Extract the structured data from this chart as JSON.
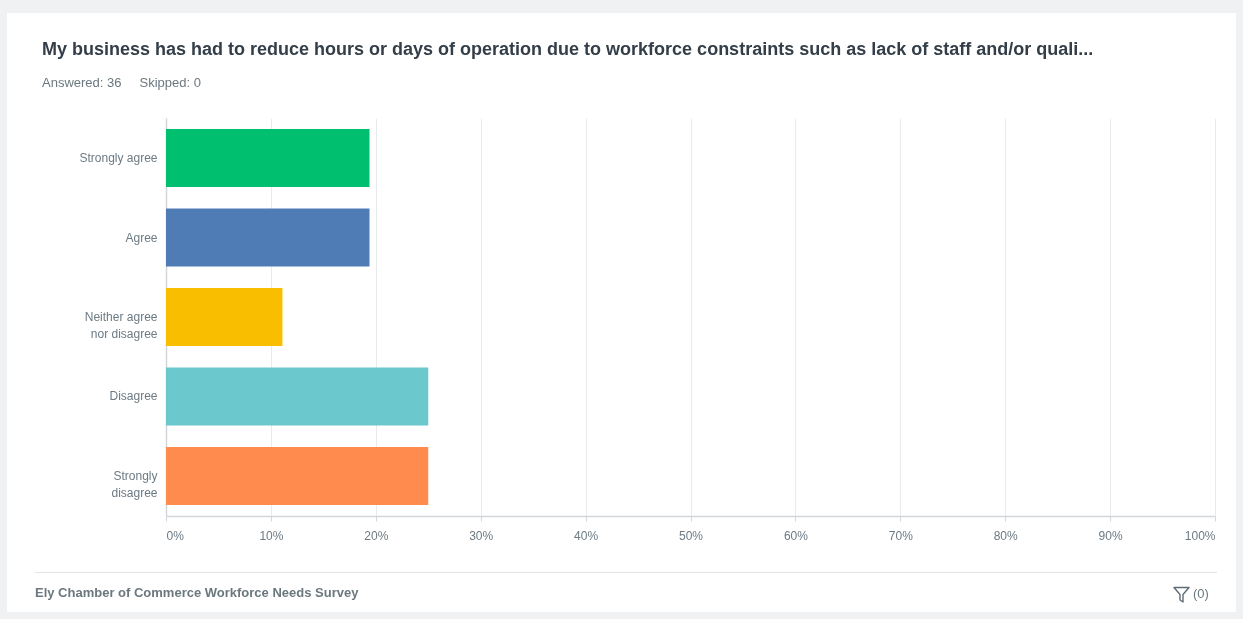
{
  "chart_data": {
    "type": "bar",
    "orientation": "horizontal",
    "title": "My business has had to reduce hours or days of operation due to workforce constraints such as lack of staff and/or quali...",
    "subtitle": "Answered: 36     Skipped: 0",
    "categories": [
      "Strongly agree",
      "Agree",
      "Neither agree nor disagree",
      "Disagree",
      "Strongly disagree"
    ],
    "values": [
      19.4,
      19.4,
      11.1,
      25,
      25
    ],
    "colors": [
      "#00bf6f",
      "#507cb6",
      "#f9be00",
      "#6bc8cd",
      "#ff8b4f"
    ],
    "xlim": [
      0,
      100
    ],
    "xticks": [
      {
        "value": 0,
        "label": "0%"
      },
      {
        "value": 10,
        "label": "10%"
      },
      {
        "value": 20,
        "label": "20%"
      },
      {
        "value": 30,
        "label": "30%"
      },
      {
        "value": 40,
        "label": "40%"
      },
      {
        "value": 50,
        "label": "50%"
      },
      {
        "value": 60,
        "label": "60%"
      },
      {
        "value": 70,
        "label": "70%"
      },
      {
        "value": 80,
        "label": "80%"
      },
      {
        "value": 90,
        "label": "90%"
      },
      {
        "value": 100,
        "label": "100%"
      }
    ],
    "grid": "x",
    "annotations": [
      "Ely Chamber of Commerce Workforce Needs Survey",
      "(0)"
    ]
  }
}
